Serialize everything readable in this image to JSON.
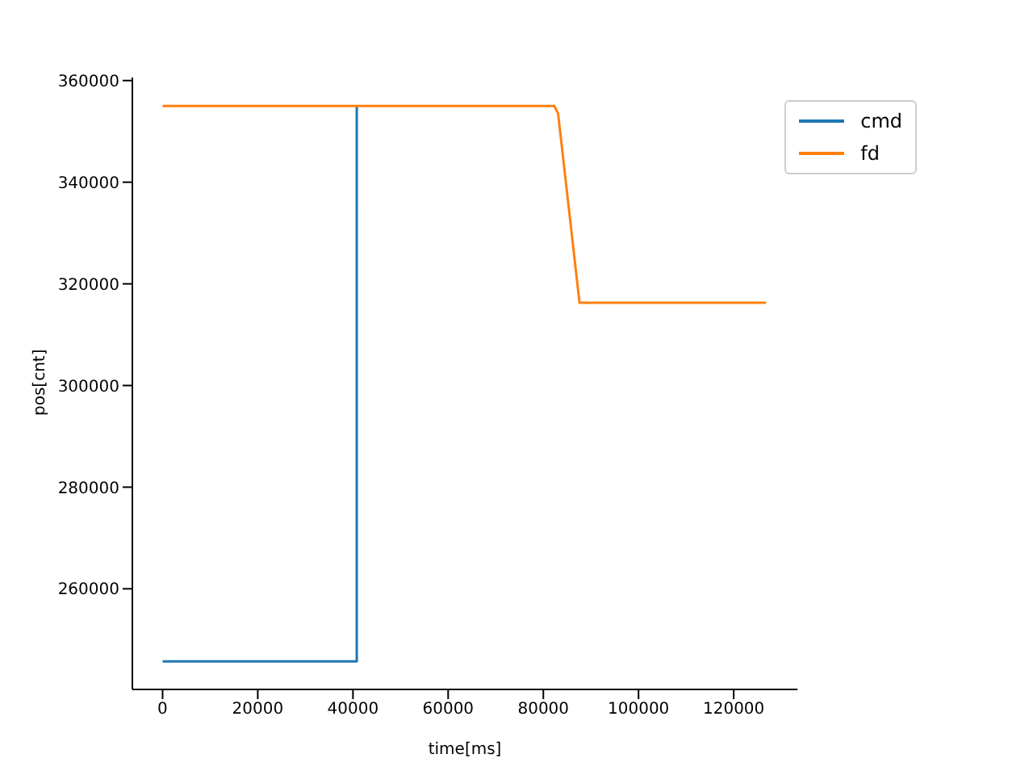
{
  "chart_data": {
    "type": "line",
    "xlabel": "time[ms]",
    "ylabel": "pos[cnt]",
    "xlim": [
      -6350,
      133400
    ],
    "ylim": [
      240200,
      360600
    ],
    "xticks": [
      0,
      20000,
      40000,
      60000,
      80000,
      100000,
      120000
    ],
    "yticks": [
      260000,
      280000,
      300000,
      320000,
      340000,
      360000
    ],
    "grid": false,
    "legend": "top right",
    "marker": "none",
    "line_style": "solid",
    "series": [
      {
        "name": "cmd",
        "color": "#1f77b4",
        "x": [
          0,
          40800,
          40800
        ],
        "values": [
          245700,
          245700,
          355000
        ]
      },
      {
        "name": "fd",
        "color": "#ff7f0e",
        "x": [
          0,
          82300,
          83100,
          87600,
          126800
        ],
        "values": [
          355000,
          355000,
          353500,
          316300,
          316300
        ]
      }
    ]
  }
}
